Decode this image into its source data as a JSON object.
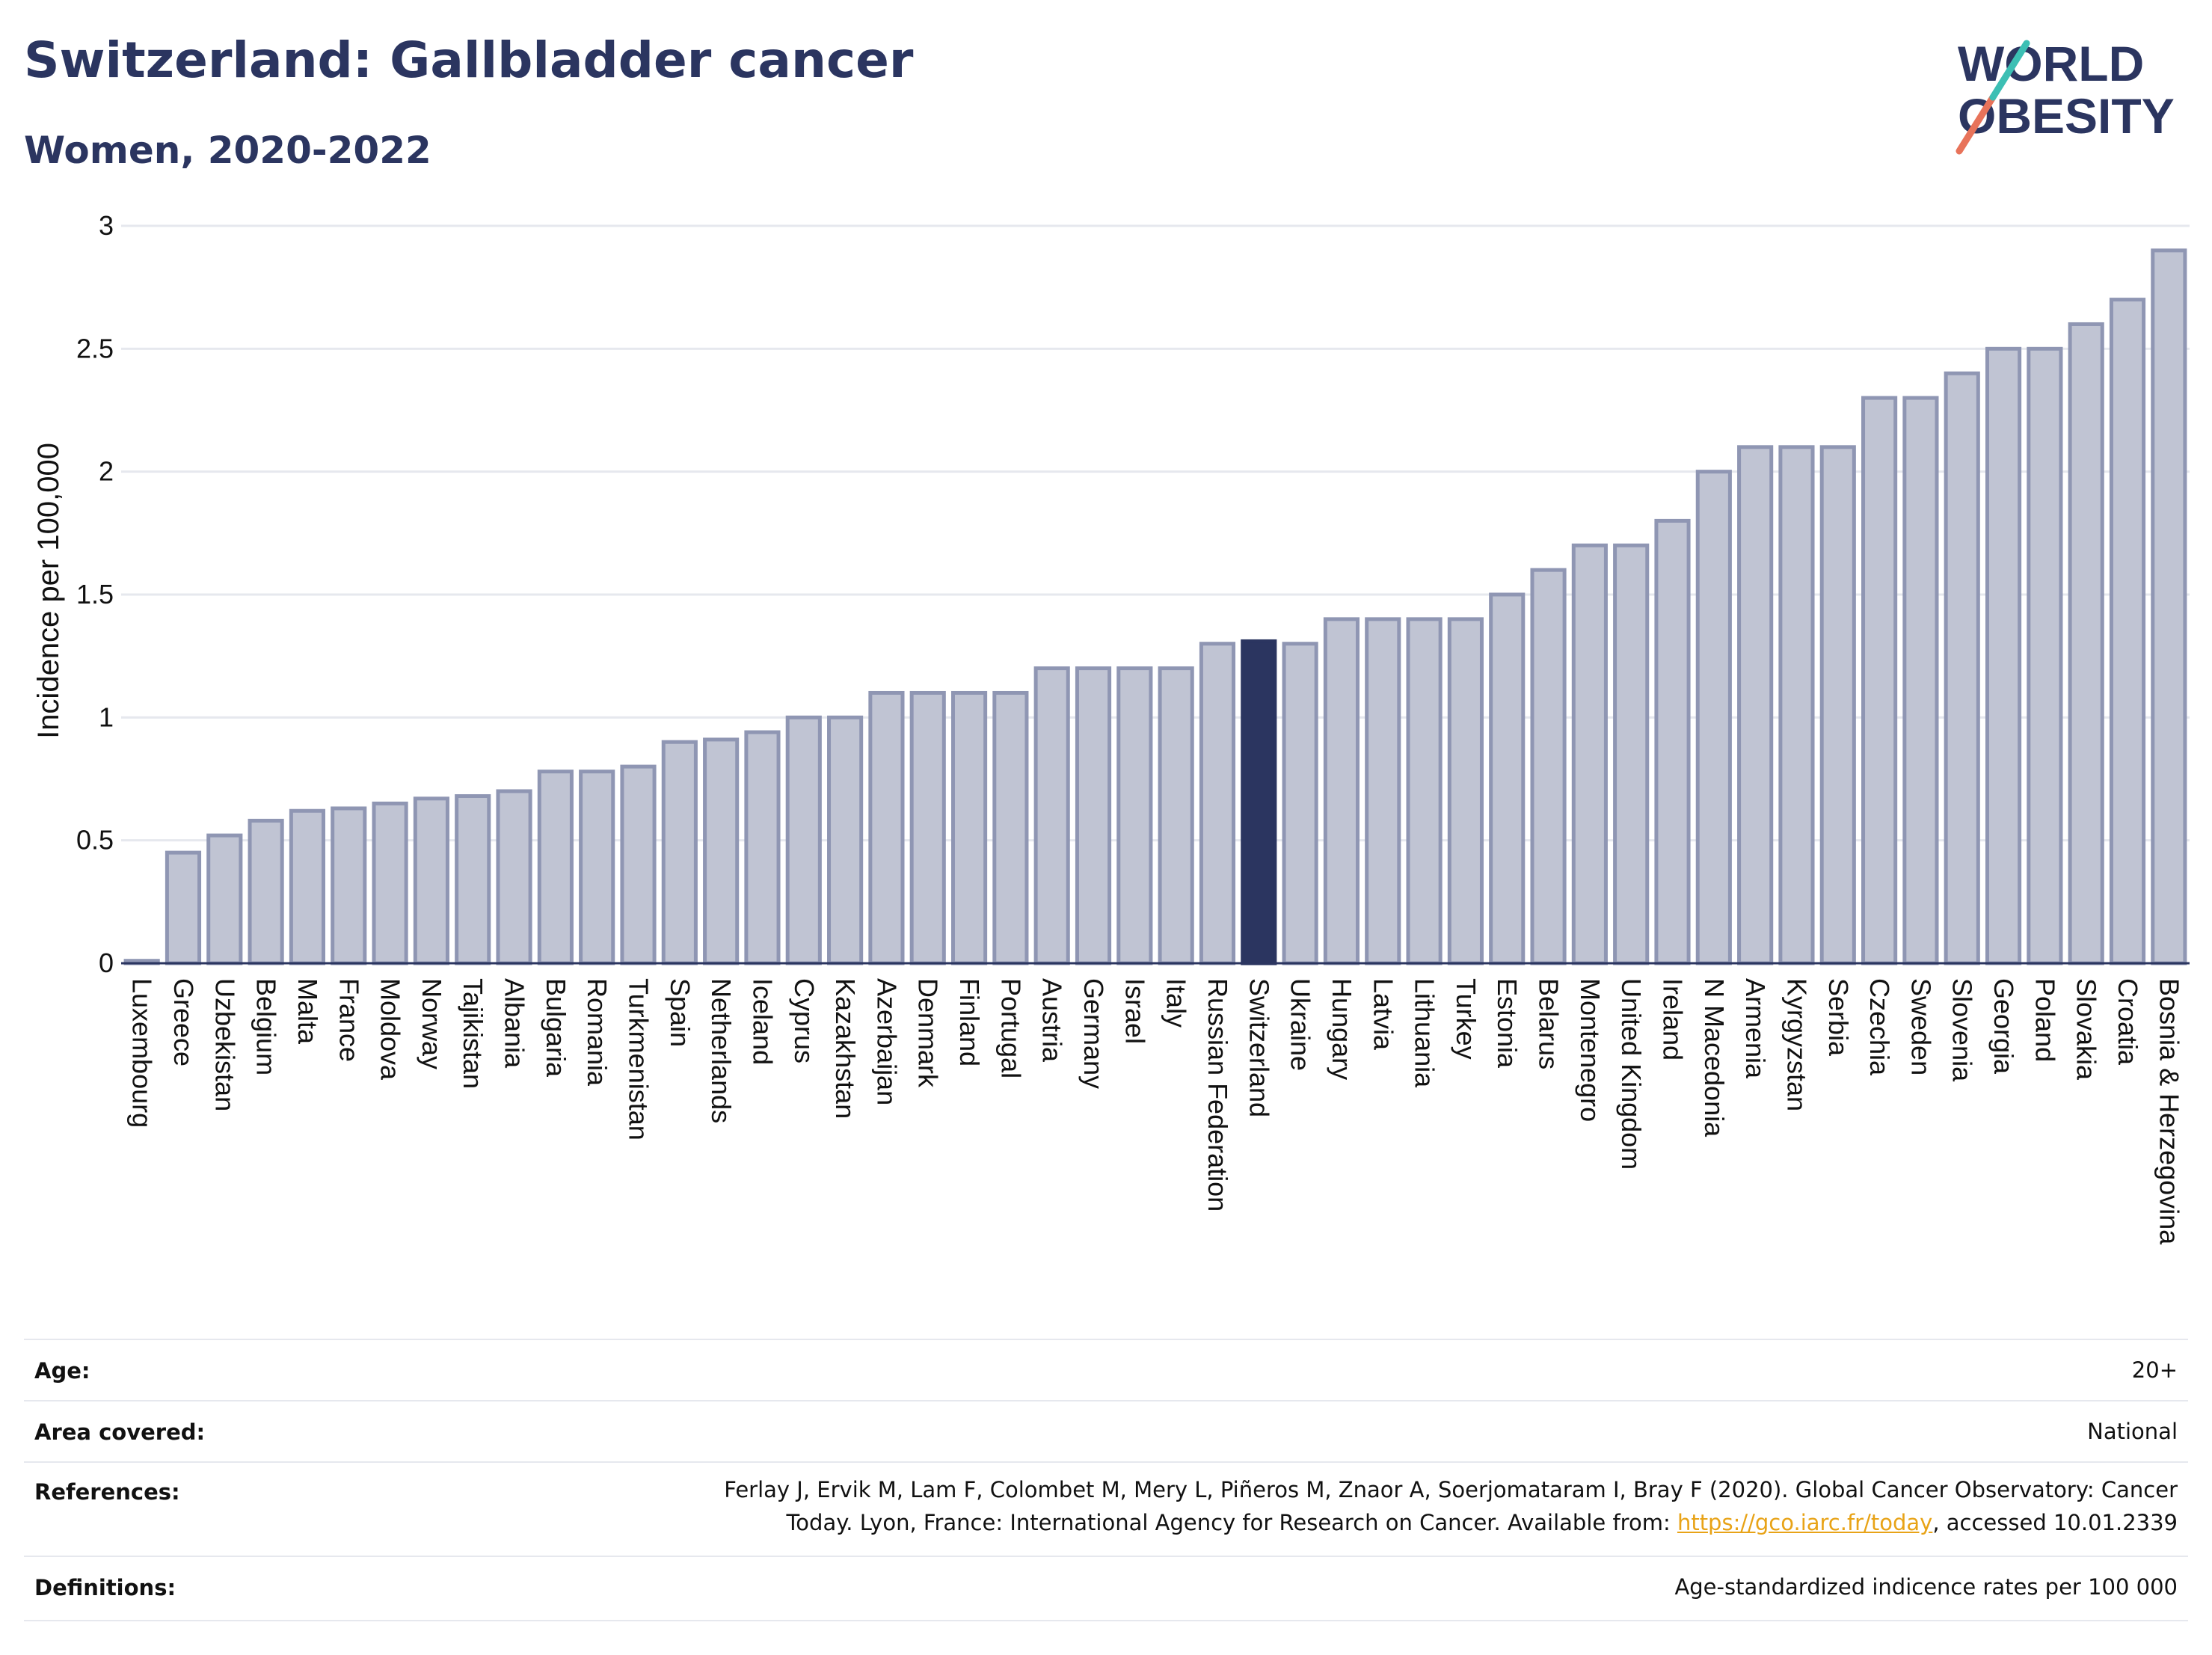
{
  "header": {
    "title": "Switzerland: Gallbladder cancer",
    "subtitle": "Women, 2020-2022"
  },
  "logo": {
    "line1": "WORLD",
    "line2": "OBESITY"
  },
  "colors": {
    "highlight": "#2b3560",
    "bar": "#c0c4d3",
    "bar_border": "#8f96b3",
    "accent_red": "#e8735a",
    "accent_teal": "#3cbfb4"
  },
  "chart_data": {
    "type": "bar",
    "ylabel": "Incidence per 100,000",
    "ylim": [
      0,
      3
    ],
    "yticks": [
      "0",
      "0.5",
      "1",
      "1.5",
      "2",
      "2.5",
      "3"
    ],
    "grid": true,
    "highlight": "Switzerland",
    "categories": [
      "Luxembourg",
      "Greece",
      "Uzbekistan",
      "Belgium",
      "Malta",
      "France",
      "Moldova",
      "Norway",
      "Tajikistan",
      "Albania",
      "Bulgaria",
      "Romania",
      "Turkmenistan",
      "Spain",
      "Netherlands",
      "Iceland",
      "Cyprus",
      "Kazakhstan",
      "Azerbaijan",
      "Denmark",
      "Finland",
      "Portugal",
      "Austria",
      "Germany",
      "Israel",
      "Italy",
      "Russian Federation",
      "Switzerland",
      "Ukraine",
      "Hungary",
      "Latvia",
      "Lithuania",
      "Turkey",
      "Estonia",
      "Belarus",
      "Montenegro",
      "United Kingdom",
      "Ireland",
      "N Macedonia",
      "Armenia",
      "Kyrgyzstan",
      "Serbia",
      "Czechia",
      "Sweden",
      "Slovenia",
      "Georgia",
      "Poland",
      "Slovakia",
      "Croatia",
      "Bosnia & Herzegovina"
    ],
    "values": [
      0.01,
      0.45,
      0.52,
      0.58,
      0.62,
      0.63,
      0.65,
      0.67,
      0.68,
      0.7,
      0.78,
      0.78,
      0.8,
      0.9,
      0.91,
      0.94,
      1.0,
      1.0,
      1.1,
      1.1,
      1.1,
      1.1,
      1.2,
      1.2,
      1.2,
      1.2,
      1.3,
      1.31,
      1.3,
      1.4,
      1.4,
      1.4,
      1.4,
      1.5,
      1.6,
      1.7,
      1.7,
      1.8,
      2.0,
      2.1,
      2.1,
      2.1,
      2.3,
      2.3,
      2.4,
      2.5,
      2.5,
      2.6,
      2.7,
      2.9
    ]
  },
  "info": {
    "age_label": "Age:",
    "age_value": "20+",
    "area_label": "Area covered:",
    "area_value": "National",
    "references_label": "References:",
    "references_line1": "Ferlay J, Ervik M, Lam F, Colombet M, Mery L, Piñeros M, Znaor A, Soerjomataram I, Bray F (2020). Global Cancer Observatory: Cancer",
    "references_line2_pre": "Today. Lyon, France: International Agency for Research on Cancer. Available from: ",
    "references_link": "https://gco.iarc.fr/today",
    "references_line2_post": ", accessed 10.01.2339",
    "definitions_label": "Definitions:",
    "definitions_value": "Age-standardized indicence rates per 100 000"
  }
}
